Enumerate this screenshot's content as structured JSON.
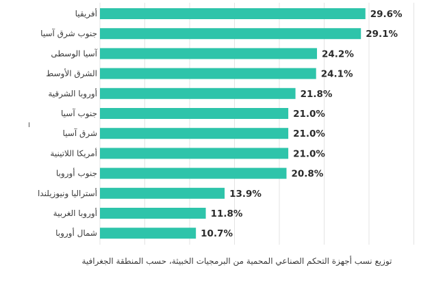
{
  "chart_data": {
    "type": "bar",
    "orientation": "horizontal",
    "categories": [
      "أفريقيا",
      "جنوب شرق آسيا",
      "آسيا الوسطى",
      "الشرق الأوسط",
      "أوروبا الشرقية",
      "جنوب آسيا",
      "شرق آسيا",
      "أمريكا اللاتينية",
      "جنوب أوروبا",
      "أستراليا ونيوزيلندا",
      "أوروبا الغربية",
      "شمال أوروبا"
    ],
    "values": [
      29.6,
      29.1,
      24.2,
      24.1,
      21.8,
      21.0,
      21.0,
      21.0,
      20.8,
      13.9,
      11.8,
      10.7
    ],
    "value_labels": [
      "29.6%",
      "29.1%",
      "24.2%",
      "24.1%",
      "21.8%",
      "21.0%",
      "21.0%",
      "21.0%",
      "20.8%",
      "13.9%",
      "11.8%",
      "10.7%"
    ],
    "unit": "%",
    "caption": "توزيع نسب أجهزة التحكم الصناعي المحمية من البرمجيات الخبيثة، حسب المنطقة الجغرافية",
    "xlim": [
      0,
      35
    ],
    "grid": true,
    "bar_color": "#2ec4aa"
  }
}
